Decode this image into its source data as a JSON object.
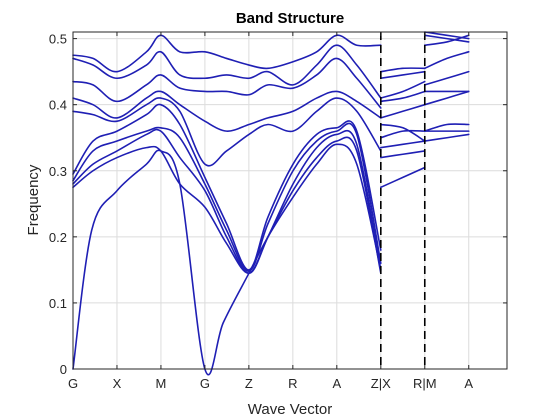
{
  "chart_data": {
    "type": "line",
    "title": "Band Structure",
    "xlabel": "Wave Vector",
    "ylabel": "Frequency",
    "xlim": [
      0,
      13
    ],
    "ylim": [
      0,
      0.51
    ],
    "grid": true,
    "colors": {
      "band": "#1f1fb4",
      "axis": "#262626",
      "grid": "#dcdcdc",
      "divider": "#000000"
    },
    "x_ticks": [
      {
        "x": 0,
        "label": "G"
      },
      {
        "x": 1.317,
        "label": "X"
      },
      {
        "x": 2.634,
        "label": "M"
      },
      {
        "x": 3.951,
        "label": "G"
      },
      {
        "x": 5.268,
        "label": "Z"
      },
      {
        "x": 6.585,
        "label": "R"
      },
      {
        "x": 7.902,
        "label": "A"
      },
      {
        "x": 9.22,
        "label": "Z|X"
      },
      {
        "x": 10.537,
        "label": "R|M"
      },
      {
        "x": 11.854,
        "label": "A"
      }
    ],
    "y_ticks": [
      0,
      0.1,
      0.2,
      0.3,
      0.4,
      0.5
    ],
    "y_tick_labels": [
      "0",
      "0.1",
      "0.2",
      "0.3",
      "0.4",
      "0.5"
    ],
    "dividers": [
      9.22,
      10.537
    ],
    "series": [
      {
        "x": [
          0,
          0.56,
          1.32,
          2.2,
          2.63,
          3.2,
          3.95,
          4.5,
          5.27,
          5.84,
          6.59,
          7.3,
          7.9,
          8.5,
          9.22
        ],
        "y": [
          0,
          0.21,
          0.27,
          0.31,
          0.33,
          0.28,
          0,
          0.07,
          0.145,
          0.2,
          0.26,
          0.31,
          0.34,
          0.31,
          0.15
        ]
      },
      {
        "x": [
          0,
          0.6,
          1.32,
          2.2,
          2.63,
          3.2,
          3.95,
          4.6,
          5.27,
          5.84,
          6.59,
          7.3,
          7.9,
          8.5,
          9.22
        ],
        "y": [
          0.275,
          0.3,
          0.32,
          0.335,
          0.33,
          0.28,
          0.245,
          0.19,
          0.145,
          0.2,
          0.27,
          0.32,
          0.345,
          0.33,
          0.145
        ]
      },
      {
        "x": [
          0,
          0.6,
          1.32,
          2.2,
          2.63,
          3.2,
          3.95,
          4.6,
          5.27,
          5.84,
          6.59,
          7.3,
          7.9,
          8.5,
          9.22
        ],
        "y": [
          0.28,
          0.31,
          0.33,
          0.355,
          0.36,
          0.32,
          0.27,
          0.2,
          0.145,
          0.2,
          0.28,
          0.335,
          0.355,
          0.34,
          0.15
        ]
      },
      {
        "x": [
          0,
          0.6,
          1.32,
          2.2,
          2.63,
          3.2,
          3.95,
          4.6,
          5.27,
          5.84,
          6.59,
          7.3,
          7.9,
          8.5,
          9.22
        ],
        "y": [
          0.285,
          0.33,
          0.345,
          0.36,
          0.365,
          0.35,
          0.28,
          0.21,
          0.148,
          0.22,
          0.3,
          0.345,
          0.36,
          0.355,
          0.16
        ]
      },
      {
        "x": [
          0,
          0.6,
          1.32,
          2.2,
          2.63,
          3.2,
          3.95,
          4.6,
          5.27,
          5.84,
          6.59,
          7.3,
          7.9,
          8.5,
          9.22
        ],
        "y": [
          0.295,
          0.345,
          0.36,
          0.385,
          0.4,
          0.37,
          0.29,
          0.22,
          0.15,
          0.23,
          0.31,
          0.355,
          0.365,
          0.36,
          0.18
        ]
      },
      {
        "x": [
          0,
          0.6,
          1.32,
          2.2,
          2.63,
          3.2,
          3.95,
          4.6,
          5.27,
          5.84,
          6.59,
          7.3,
          7.9,
          8.5,
          9.22
        ],
        "y": [
          0.39,
          0.385,
          0.375,
          0.4,
          0.41,
          0.39,
          0.31,
          0.33,
          0.355,
          0.37,
          0.36,
          0.39,
          0.41,
          0.39,
          0.33
        ]
      },
      {
        "x": [
          0,
          0.6,
          1.32,
          2.2,
          2.63,
          3.2,
          3.95,
          4.6,
          5.27,
          5.84,
          6.59,
          7.3,
          7.9,
          8.5,
          9.22
        ],
        "y": [
          0.41,
          0.4,
          0.38,
          0.41,
          0.42,
          0.4,
          0.375,
          0.36,
          0.37,
          0.38,
          0.39,
          0.41,
          0.42,
          0.405,
          0.38
        ]
      },
      {
        "x": [
          0,
          0.6,
          1.32,
          2.2,
          2.63,
          3.2,
          3.95,
          4.6,
          5.27,
          5.84,
          6.59,
          7.3,
          7.9,
          8.5,
          9.22
        ],
        "y": [
          0.435,
          0.43,
          0.405,
          0.43,
          0.445,
          0.425,
          0.42,
          0.42,
          0.415,
          0.43,
          0.425,
          0.445,
          0.47,
          0.44,
          0.395
        ]
      },
      {
        "x": [
          0,
          0.6,
          1.32,
          2.2,
          2.63,
          3.2,
          3.95,
          4.6,
          5.27,
          5.84,
          6.59,
          7.3,
          7.9,
          8.5,
          9.22
        ],
        "y": [
          0.47,
          0.46,
          0.44,
          0.46,
          0.48,
          0.445,
          0.44,
          0.445,
          0.44,
          0.45,
          0.43,
          0.46,
          0.49,
          0.46,
          0.41
        ]
      },
      {
        "x": [
          0,
          0.6,
          1.32,
          2.2,
          2.63,
          3.2,
          3.95,
          4.6,
          5.27,
          5.84,
          6.59,
          7.3,
          7.9,
          8.5,
          9.22
        ],
        "y": [
          0.475,
          0.47,
          0.45,
          0.48,
          0.505,
          0.48,
          0.48,
          0.47,
          0.46,
          0.455,
          0.465,
          0.48,
          0.505,
          0.49,
          0.49
        ]
      },
      {
        "x": [
          9.22,
          9.88,
          10.537
        ],
        "y": [
          0.275,
          0.29,
          0.305
        ]
      },
      {
        "x": [
          9.22,
          9.88,
          10.537
        ],
        "y": [
          0.32,
          0.325,
          0.33
        ]
      },
      {
        "x": [
          9.22,
          9.88,
          10.537
        ],
        "y": [
          0.335,
          0.34,
          0.345
        ]
      },
      {
        "x": [
          9.22,
          9.88,
          10.537
        ],
        "y": [
          0.35,
          0.36,
          0.36
        ]
      },
      {
        "x": [
          9.22,
          9.88,
          10.537
        ],
        "y": [
          0.37,
          0.365,
          0.345
        ]
      },
      {
        "x": [
          9.22,
          9.88,
          10.537
        ],
        "y": [
          0.38,
          0.39,
          0.4
        ]
      },
      {
        "x": [
          9.22,
          9.88,
          10.537
        ],
        "y": [
          0.405,
          0.41,
          0.42
        ]
      },
      {
        "x": [
          9.22,
          9.88,
          10.537
        ],
        "y": [
          0.41,
          0.42,
          0.435
        ]
      },
      {
        "x": [
          9.22,
          9.88,
          10.537
        ],
        "y": [
          0.44,
          0.445,
          0.45
        ]
      },
      {
        "x": [
          9.22,
          9.88,
          10.537
        ],
        "y": [
          0.45,
          0.455,
          0.455
        ]
      },
      {
        "x": [
          10.537,
          11.2,
          11.854
        ],
        "y": [
          0.345,
          0.35,
          0.355
        ]
      },
      {
        "x": [
          10.537,
          11.2,
          11.854
        ],
        "y": [
          0.36,
          0.36,
          0.36
        ]
      },
      {
        "x": [
          10.537,
          11.2,
          11.854
        ],
        "y": [
          0.36,
          0.37,
          0.37
        ]
      },
      {
        "x": [
          10.537,
          11.2,
          11.854
        ],
        "y": [
          0.4,
          0.41,
          0.42
        ]
      },
      {
        "x": [
          10.537,
          11.2,
          11.854
        ],
        "y": [
          0.42,
          0.42,
          0.42
        ]
      },
      {
        "x": [
          10.537,
          11.2,
          11.854
        ],
        "y": [
          0.43,
          0.44,
          0.45
        ]
      },
      {
        "x": [
          10.537,
          11.2,
          11.854
        ],
        "y": [
          0.455,
          0.47,
          0.48
        ]
      },
      {
        "x": [
          10.537,
          11.2,
          11.854
        ],
        "y": [
          0.49,
          0.495,
          0.505
        ]
      },
      {
        "x": [
          10.537,
          11.2,
          11.854
        ],
        "y": [
          0.505,
          0.5,
          0.495
        ]
      },
      {
        "x": [
          10.537,
          11.2,
          11.854
        ],
        "y": [
          0.51,
          0.505,
          0.5
        ]
      }
    ]
  }
}
